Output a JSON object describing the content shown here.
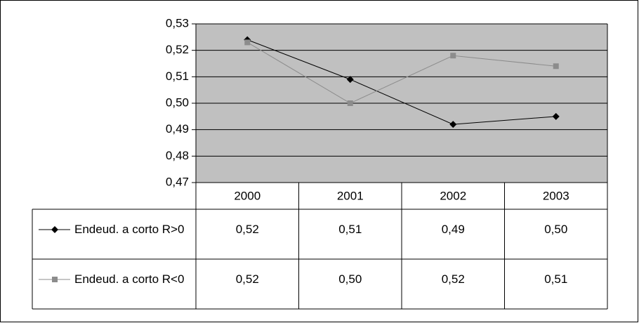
{
  "chart_data": {
    "type": "line",
    "categories": [
      "2000",
      "2001",
      "2002",
      "2003"
    ],
    "series": [
      {
        "name": "Endeud. a corto R>0",
        "color": "#000000",
        "marker": "diamond",
        "values": [
          0.524,
          0.509,
          0.492,
          0.495
        ],
        "value_labels": [
          "0,52",
          "0,51",
          "0,49",
          "0,50"
        ]
      },
      {
        "name": "Endeud. a corto R<0",
        "color": "#8c8c8c",
        "marker": "square",
        "values": [
          0.523,
          0.5,
          0.518,
          0.514
        ],
        "value_labels": [
          "0,52",
          "0,50",
          "0,52",
          "0,51"
        ]
      }
    ],
    "ylim": [
      0.47,
      0.53
    ],
    "yticks": [
      {
        "value": 0.47,
        "label": "0,47"
      },
      {
        "value": 0.48,
        "label": "0,48"
      },
      {
        "value": 0.49,
        "label": "0,49"
      },
      {
        "value": 0.5,
        "label": "0,50"
      },
      {
        "value": 0.51,
        "label": "0,51"
      },
      {
        "value": 0.52,
        "label": "0,52"
      },
      {
        "value": 0.53,
        "label": "0,53"
      }
    ],
    "grid": true,
    "plot_background": "#c0c0c0"
  }
}
